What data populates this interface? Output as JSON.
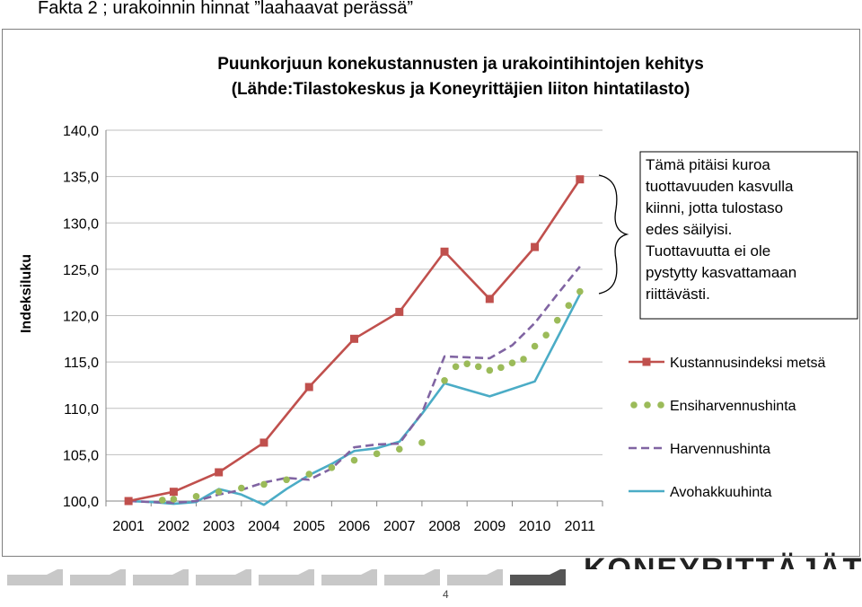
{
  "slide": {
    "title": "Fakta 2 ; urakoinnin hinnat ”laahaavat perässä”",
    "page_number": "4",
    "logo_text": "KONEYRITTÄJÄT"
  },
  "chart_data": {
    "type": "line",
    "title": "Puunkorjuun konekustannusten ja urakointihintojen kehitys",
    "subtitle": "(Lähde:Tilastokeskus ja Koneyrittäjien liiton hintatilasto)",
    "ylabel": "Indeksiluku",
    "xlabel": "",
    "ylim": [
      100,
      140
    ],
    "yticks": [
      "100,0",
      "105,0",
      "110,0",
      "115,0",
      "120,0",
      "125,0",
      "130,0",
      "135,0",
      "140,0"
    ],
    "categories": [
      "2001",
      "2002",
      "2003",
      "2004",
      "2005",
      "2006",
      "2007",
      "2008",
      "2009",
      "2010",
      "2011"
    ],
    "grid": "horizontal",
    "legend": "right",
    "series": [
      {
        "name": "Kustannusindeksi metsä",
        "color": "#c0504d",
        "style": "solid-square-markers",
        "x": [
          2001,
          2002,
          2003,
          2004,
          2005,
          2006,
          2007,
          2008,
          2009,
          2010,
          2011
        ],
        "values": [
          100.0,
          101.0,
          103.1,
          106.3,
          112.3,
          117.5,
          120.4,
          126.9,
          121.8,
          127.4,
          134.7
        ]
      },
      {
        "name": "Ensiharvennushinta",
        "color": "#9bbb59",
        "style": "dots",
        "x": [
          2001,
          2001.75,
          2002,
          2002.5,
          2003,
          2003.5,
          2004,
          2004.5,
          2005,
          2005.5,
          2006,
          2006.5,
          2007,
          2007.5,
          2008,
          2008.25,
          2008.5,
          2008.75,
          2009,
          2009.25,
          2009.5,
          2009.75,
          2010,
          2010.25,
          2010.5,
          2010.75,
          2011
        ],
        "values": [
          100.0,
          100.1,
          100.2,
          100.5,
          101.0,
          101.4,
          101.8,
          102.3,
          102.9,
          103.6,
          104.4,
          105.1,
          105.6,
          106.3,
          113.0,
          114.5,
          114.8,
          114.5,
          114.1,
          114.4,
          114.9,
          115.3,
          116.7,
          117.9,
          119.5,
          121.1,
          122.6
        ]
      },
      {
        "name": "Harvennushinta",
        "color": "#8064a2",
        "style": "dashed",
        "x": [
          2001,
          2001.5,
          2002,
          2002.5,
          2003,
          2003.5,
          2004,
          2004.5,
          2005,
          2005.5,
          2006,
          2006.5,
          2007,
          2007.5,
          2008,
          2008.5,
          2009,
          2009.5,
          2010,
          2010.5,
          2011
        ],
        "values": [
          100.0,
          99.9,
          99.8,
          100.0,
          100.7,
          101.2,
          102.0,
          102.5,
          102.3,
          103.5,
          105.8,
          106.1,
          106.2,
          109.5,
          115.6,
          115.5,
          115.4,
          116.8,
          119.2,
          122.3,
          125.3
        ]
      },
      {
        "name": "Avohakkuuhinta",
        "color": "#4bacc6",
        "style": "solid",
        "x": [
          2001,
          2001.5,
          2002,
          2002.5,
          2003,
          2003.5,
          2004,
          2004.5,
          2005,
          2005.5,
          2006,
          2006.5,
          2007,
          2007.5,
          2008,
          2009,
          2010,
          2011
        ],
        "values": [
          100.0,
          99.9,
          99.7,
          99.9,
          101.3,
          100.7,
          99.6,
          101.3,
          102.8,
          104.0,
          105.4,
          105.7,
          106.4,
          109.4,
          112.7,
          111.3,
          112.9,
          122.3
        ]
      }
    ],
    "annotation": {
      "lines": [
        "Tämä pitäisi kuroa",
        "tuottavuuden kasvulla",
        "kiinni, jotta tulostaso",
        "edes säilyisi.",
        "Tuottavuutta ei ole",
        "pystytty kasvattamaan",
        "riittävästi."
      ]
    }
  }
}
